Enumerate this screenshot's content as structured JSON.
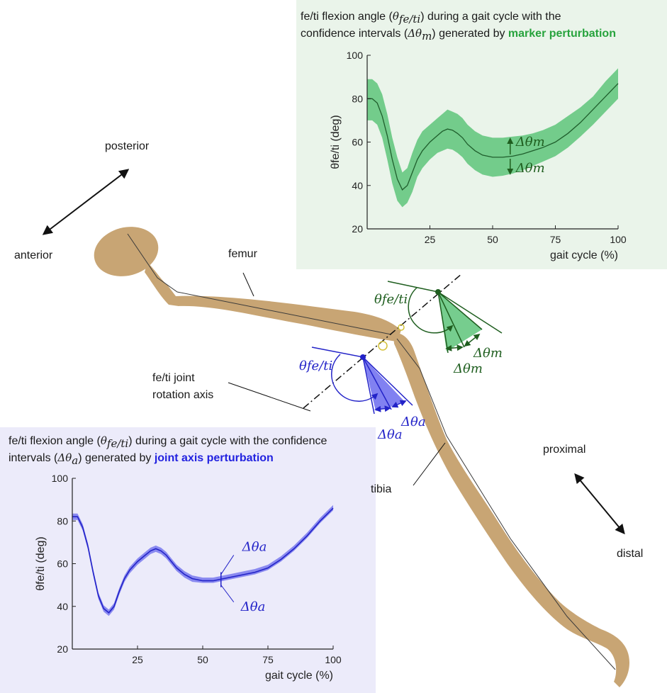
{
  "labels": {
    "posterior": "posterior",
    "anterior": "anterior",
    "femur": "femur",
    "tibia": "tibia",
    "proximal": "proximal",
    "distal": "distal",
    "axis_line1": "fe/ti joint",
    "axis_line2": "rotation axis",
    "theta_green": "θfe/ti",
    "theta_blue": "θfe/ti",
    "delta_m": "Δθm",
    "delta_a": "Δθa"
  },
  "green_panel": {
    "caption_line1_pre": "fe/ti flexion angle (",
    "caption_line1_sym": "θ",
    "caption_line1_sub": "fe/ti",
    "caption_line1_post": ") during a gait cycle with the",
    "caption_line2_pre": "confidence intervals (",
    "caption_line2_sym": "Δθ",
    "caption_line2_sub": "m",
    "caption_line2_mid": ") generated by ",
    "caption_line2_kw": "marker perturbation"
  },
  "blue_panel": {
    "caption_line1_pre": "fe/ti flexion angle (",
    "caption_line1_sym": "θ",
    "caption_line1_sub": "fe/ti",
    "caption_line1_post": ") during a gait cycle with the confidence",
    "caption_line2_pre": "intervals (",
    "caption_line2_sym": "Δθ",
    "caption_line2_sub": "a",
    "caption_line2_mid": ") generated by ",
    "caption_line2_kw": "joint axis perturbation"
  },
  "colors": {
    "green_panel_bg": "#eaf4ea",
    "blue_panel_bg": "#ecebfa",
    "green_line": "#1f5e2c",
    "green_band": "#5ec47a",
    "dark_green": "#1f5e1f",
    "blue_line": "#2323c8",
    "blue_band": "#8080ee",
    "bone": "#c8a574"
  },
  "chart_data": [
    {
      "type": "line",
      "ylabel": "θfe/ti (deg)",
      "xlabel": "gait cycle (%)",
      "xlim": [
        0,
        100
      ],
      "ylim": [
        20,
        100
      ],
      "xticks": [
        25,
        50,
        75,
        100
      ],
      "yticks": [
        20,
        40,
        60,
        80,
        100
      ],
      "series": [
        {
          "x": [
            0,
            2,
            4,
            6,
            8,
            10,
            12,
            14,
            16,
            18,
            20,
            22,
            25,
            28,
            30,
            32,
            34,
            36,
            38,
            40,
            43,
            46,
            50,
            54,
            58,
            62,
            66,
            70,
            75,
            80,
            85,
            90,
            95,
            100
          ],
          "mean": [
            80,
            80,
            78,
            72,
            63,
            52,
            43,
            38,
            40,
            46,
            52,
            56,
            60,
            63,
            65,
            66,
            65.5,
            64,
            62,
            59,
            56,
            54,
            53,
            53,
            53.5,
            54.5,
            56,
            57.5,
            60,
            64,
            69,
            75,
            81,
            87
          ],
          "lower": [
            70,
            70,
            68,
            62,
            52,
            41,
            33,
            30,
            32,
            37,
            44,
            48,
            52,
            55,
            56,
            57,
            56.5,
            55,
            53,
            50,
            47,
            45,
            44,
            44.5,
            45.5,
            47,
            49,
            51,
            53.5,
            57.5,
            62.5,
            68,
            74,
            80
          ],
          "upper": [
            89,
            89,
            87,
            82,
            73,
            62,
            53,
            46,
            48,
            55,
            61,
            65,
            68,
            71,
            73,
            75,
            74,
            73,
            71,
            68,
            65,
            63,
            62,
            62,
            62.5,
            63,
            64,
            65.5,
            68,
            72,
            76,
            81,
            88,
            94
          ]
        }
      ],
      "annotations": [
        "Δθm",
        "Δθm"
      ]
    },
    {
      "type": "line",
      "ylabel": "θfe/ti (deg)",
      "xlabel": "gait cycle (%)",
      "xlim": [
        0,
        100
      ],
      "ylim": [
        20,
        100
      ],
      "xticks": [
        25,
        50,
        75,
        100
      ],
      "yticks": [
        20,
        40,
        60,
        80,
        100
      ],
      "series": [
        {
          "x": [
            0,
            2,
            4,
            6,
            8,
            10,
            12,
            14,
            16,
            18,
            20,
            22,
            25,
            28,
            30,
            32,
            34,
            36,
            38,
            40,
            43,
            46,
            50,
            54,
            58,
            62,
            66,
            70,
            75,
            80,
            85,
            90,
            95,
            100
          ],
          "mean": [
            82,
            82,
            77,
            68,
            56,
            45,
            39,
            37,
            40,
            47,
            53,
            57,
            61,
            64,
            66,
            67,
            66,
            64,
            61,
            58,
            55,
            53,
            52,
            52,
            53,
            54,
            55,
            56,
            58,
            62,
            67,
            73,
            80,
            86
          ],
          "lower": [
            80.5,
            80.5,
            75.5,
            66.5,
            54.5,
            43.5,
            37.5,
            35.5,
            38.5,
            45.5,
            51.5,
            55.5,
            59.5,
            62.5,
            64.5,
            65.5,
            64.5,
            62.5,
            59.5,
            56.5,
            53.5,
            51.5,
            51,
            51,
            52,
            53,
            54,
            55,
            57,
            61,
            66,
            72,
            79,
            85
          ],
          "upper": [
            83.5,
            83.5,
            78.5,
            69.5,
            57.5,
            46.5,
            40.5,
            38.5,
            41.5,
            48.5,
            54.5,
            58.5,
            62.5,
            65.5,
            67.5,
            68.5,
            67.5,
            65.5,
            62.5,
            59.5,
            56.5,
            54.5,
            53.5,
            53.5,
            54.5,
            55.5,
            56.5,
            57.5,
            59.5,
            63.5,
            68.5,
            74.5,
            81.5,
            87.5
          ]
        }
      ],
      "annotations": [
        "Δθa",
        "Δθa"
      ]
    }
  ]
}
